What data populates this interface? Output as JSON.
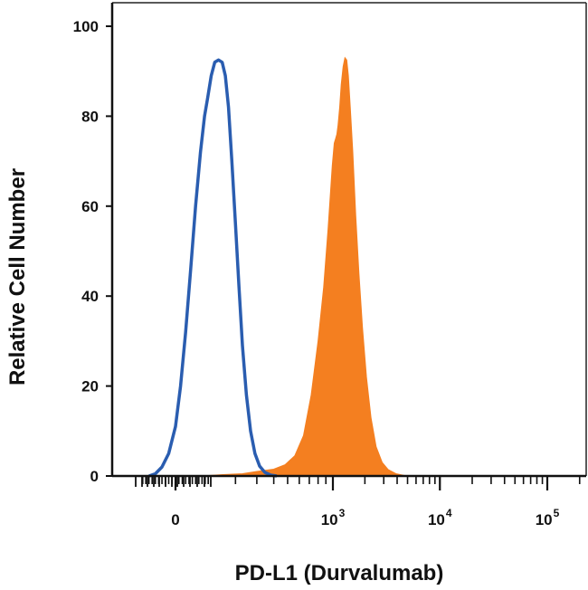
{
  "chart_data": {
    "type": "area",
    "xlabel": "PD-L1 (Durvalumab)",
    "ylabel": "Relative Cell Number",
    "y_ticks": [
      "0",
      "20",
      "40",
      "60",
      "80",
      "100"
    ],
    "ylim": [
      0,
      100
    ],
    "x_ticks": [
      {
        "base": "0",
        "exp": ""
      },
      {
        "base": "10",
        "exp": "3"
      },
      {
        "base": "10",
        "exp": "4"
      },
      {
        "base": "10",
        "exp": "5"
      }
    ],
    "x_scale": "biexponential (log above 10^3)",
    "grid": false,
    "legend": "none",
    "series": [
      {
        "style": "filled",
        "color": "#f47f20",
        "points": [
          [
            80,
            0
          ],
          [
            150,
            0.3
          ],
          [
            230,
            0.5
          ],
          [
            300,
            1.0
          ],
          [
            400,
            1.5
          ],
          [
            480,
            2.5
          ],
          [
            560,
            4.5
          ],
          [
            640,
            9
          ],
          [
            720,
            18
          ],
          [
            800,
            30
          ],
          [
            870,
            42
          ],
          [
            930,
            55
          ],
          [
            990,
            69
          ],
          [
            1030,
            74
          ],
          [
            1060,
            75
          ],
          [
            1090,
            76
          ],
          [
            1120,
            78
          ],
          [
            1160,
            82
          ],
          [
            1200,
            87
          ],
          [
            1250,
            91
          ],
          [
            1300,
            93
          ],
          [
            1350,
            92.5
          ],
          [
            1400,
            89
          ],
          [
            1460,
            82
          ],
          [
            1540,
            72
          ],
          [
            1640,
            58
          ],
          [
            1760,
            45
          ],
          [
            1900,
            33
          ],
          [
            2070,
            22
          ],
          [
            2280,
            13
          ],
          [
            2550,
            6.5
          ],
          [
            2900,
            3
          ],
          [
            3300,
            1.4
          ],
          [
            3900,
            0.5
          ],
          [
            4700,
            0.1
          ],
          [
            6000,
            0
          ]
        ]
      },
      {
        "style": "outline",
        "color": "#2a5db0",
        "points": [
          [
            -80,
            0
          ],
          [
            -60,
            0.5
          ],
          [
            -40,
            2
          ],
          [
            -20,
            5
          ],
          [
            0,
            11
          ],
          [
            15,
            20
          ],
          [
            30,
            32
          ],
          [
            45,
            46
          ],
          [
            60,
            60
          ],
          [
            75,
            72
          ],
          [
            88,
            80
          ],
          [
            98,
            84
          ],
          [
            110,
            89
          ],
          [
            122,
            92
          ],
          [
            135,
            92.5
          ],
          [
            148,
            92
          ],
          [
            160,
            89
          ],
          [
            172,
            82
          ],
          [
            185,
            70
          ],
          [
            200,
            56
          ],
          [
            215,
            42
          ],
          [
            230,
            29
          ],
          [
            248,
            18
          ],
          [
            268,
            10
          ],
          [
            290,
            5
          ],
          [
            315,
            2.2
          ],
          [
            345,
            0.8
          ],
          [
            380,
            0.2
          ],
          [
            420,
            0
          ]
        ]
      }
    ]
  }
}
